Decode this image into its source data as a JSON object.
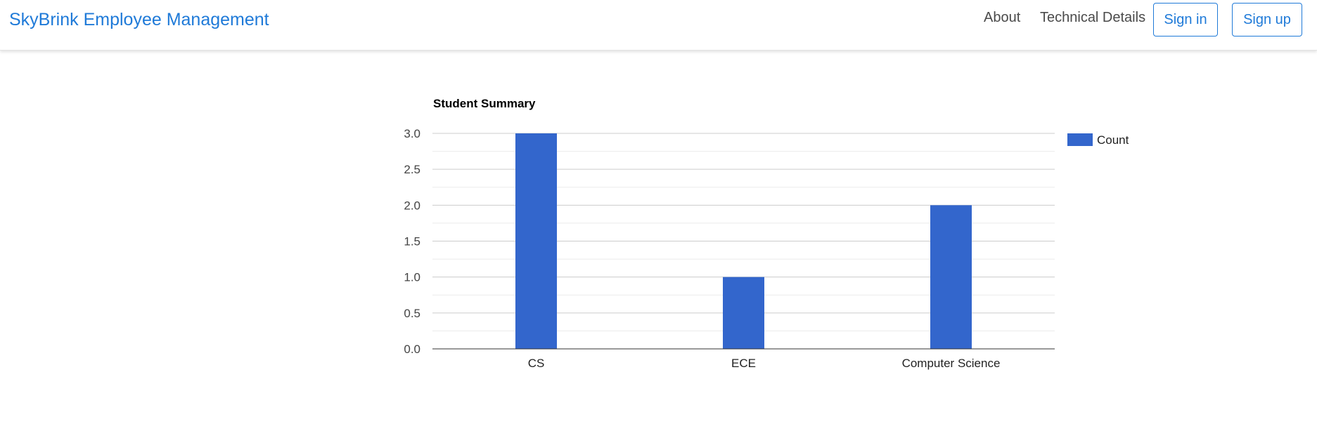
{
  "navbar": {
    "brand": "SkyBrink Employee Management",
    "links": [
      "About",
      "Technical Details"
    ],
    "buttons": [
      "Sign in",
      "Sign up"
    ],
    "brand_color": "#1f7ad8"
  },
  "chart_data": {
    "type": "bar",
    "title": "Student Summary",
    "categories": [
      "CS",
      "ECE",
      "Computer Science"
    ],
    "series": [
      {
        "name": "Count",
        "values": [
          3,
          1,
          2
        ],
        "color": "#3366cc"
      }
    ],
    "ylim": [
      0,
      3
    ],
    "yticks": [
      "0.0",
      "0.5",
      "1.0",
      "1.5",
      "2.0",
      "2.5",
      "3.0"
    ],
    "grid": true,
    "legend": "right"
  }
}
